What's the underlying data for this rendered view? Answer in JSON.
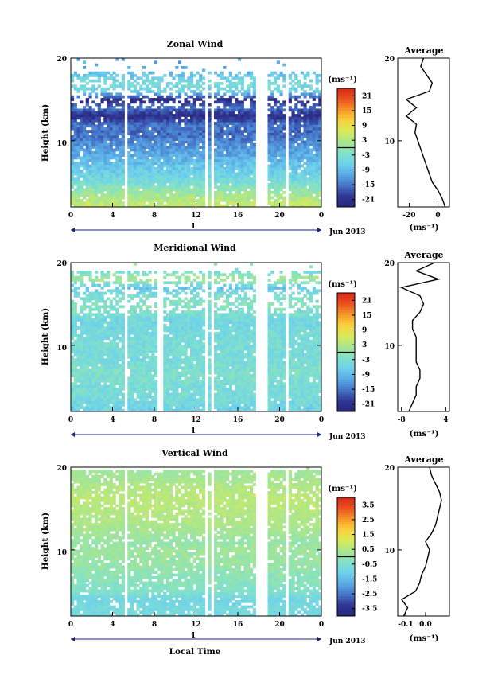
{
  "chart_data": [
    {
      "type": "heatmap",
      "title": "Zonal Wind",
      "ylabel": "Height (km)",
      "ylim": [
        2,
        20
      ],
      "xlim": [
        0,
        24
      ],
      "xticks": [
        "0",
        "4",
        "8",
        "12",
        "16",
        "20",
        "0"
      ],
      "yticks": [
        "20",
        "10"
      ],
      "date_ticks": [
        "1"
      ],
      "date_label": "Jun 2013",
      "colorbar": {
        "unit": "(ms⁻¹)",
        "ticks": [
          "21",
          "15",
          "9",
          "3",
          "-3",
          "-9",
          "-15",
          "-21"
        ],
        "range": [
          -24,
          24
        ]
      },
      "gap_hours": [
        5.3,
        13.0,
        13.6,
        18.0,
        18.6,
        20.7
      ],
      "profile": {
        "title": "Average",
        "xlabel": "(ms⁻¹)",
        "xticks": [
          "-20",
          "0"
        ],
        "xlim": [
          -28,
          8
        ],
        "yticks": [
          "20",
          "10"
        ],
        "height": [
          2,
          3,
          4,
          5,
          6,
          7,
          8,
          9,
          10,
          11,
          12,
          13,
          14,
          15,
          16,
          17,
          18,
          19,
          20
        ],
        "value": [
          5,
          3,
          0,
          -4,
          -6,
          -8,
          -10,
          -12,
          -14,
          -16,
          -15,
          -22,
          -15,
          -22,
          -6,
          -4,
          -8,
          -12,
          -10
        ]
      }
    },
    {
      "type": "heatmap",
      "title": "Meridional Wind",
      "ylabel": "Height (km)",
      "ylim": [
        2,
        20
      ],
      "xlim": [
        0,
        24
      ],
      "xticks": [
        "0",
        "4",
        "8",
        "12",
        "16",
        "20",
        "0"
      ],
      "yticks": [
        "20",
        "10"
      ],
      "date_ticks": [
        "1"
      ],
      "date_label": "Jun 2013",
      "colorbar": {
        "unit": "(ms⁻¹)",
        "ticks": [
          "21",
          "15",
          "9",
          "3",
          "-3",
          "-9",
          "-15",
          "-21"
        ],
        "range": [
          -24,
          24
        ]
      },
      "gap_hours": [
        5.3,
        8.6,
        13.0,
        13.6,
        18.0,
        18.6,
        20.7
      ],
      "profile": {
        "title": "Average",
        "xlabel": "(ms⁻¹)",
        "xticks": [
          "-8",
          "4"
        ],
        "xlim": [
          -9,
          5
        ],
        "yticks": [
          "20",
          "10"
        ],
        "height": [
          2,
          3,
          4,
          5,
          6,
          7,
          8,
          9,
          10,
          11,
          12,
          13,
          14,
          15,
          16,
          17,
          18,
          19,
          20
        ],
        "value": [
          -6,
          -5,
          -4,
          -4,
          -3,
          -3,
          -4,
          -4,
          -4,
          -4,
          -5,
          -5,
          -3,
          -2,
          -3,
          -8,
          2,
          -4,
          1
        ]
      }
    },
    {
      "type": "heatmap",
      "title": "Vertical Wind",
      "xlabel": "Local Time",
      "ylabel": "Height (km)",
      "ylim": [
        2,
        20
      ],
      "xlim": [
        0,
        24
      ],
      "xticks": [
        "0",
        "4",
        "8",
        "12",
        "16",
        "20",
        "0"
      ],
      "yticks": [
        "20",
        "10"
      ],
      "date_ticks": [
        "1"
      ],
      "date_label": "Jun 2013",
      "colorbar": {
        "unit": "(ms⁻¹)",
        "ticks": [
          "3.5",
          "2.5",
          "1.5",
          "0.5",
          "-0.5",
          "-1.5",
          "-2.5",
          "-3.5"
        ],
        "range": [
          -4,
          4
        ]
      },
      "gap_hours": [
        5.3,
        13.0,
        13.6,
        18.0,
        18.6,
        20.7
      ],
      "profile": {
        "title": "Average",
        "xlabel": "(ms⁻¹)",
        "xticks": [
          "-0.1",
          "0.0"
        ],
        "xlim": [
          -0.14,
          0.12
        ],
        "yticks": [
          "20",
          "10"
        ],
        "height": [
          2,
          3,
          4,
          5,
          6,
          7,
          8,
          9,
          10,
          11,
          12,
          13,
          14,
          15,
          16,
          17,
          18,
          19,
          20
        ],
        "value": [
          -0.11,
          -0.09,
          -0.12,
          -0.05,
          -0.03,
          -0.02,
          0.0,
          0.01,
          0.02,
          0.0,
          0.03,
          0.05,
          0.06,
          0.07,
          0.08,
          0.07,
          0.05,
          0.03,
          0.02
        ]
      }
    }
  ]
}
